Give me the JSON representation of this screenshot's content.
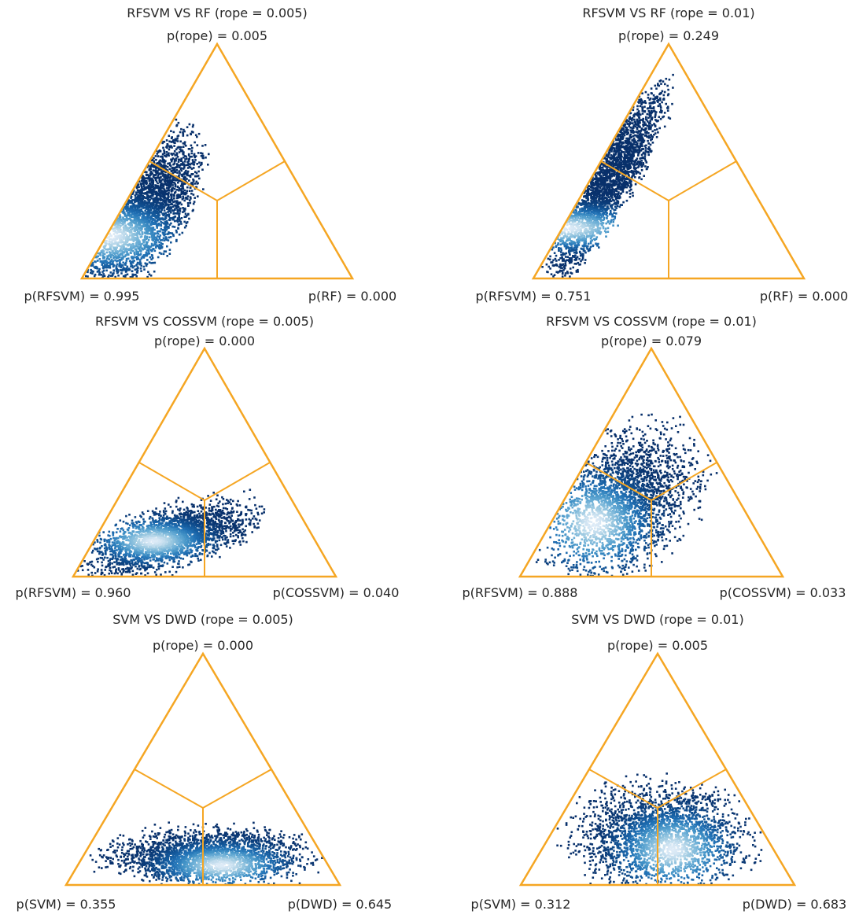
{
  "chart_data": [
    {
      "type": "ternary-density",
      "title": "RFSVM VS RF (rope = 0.005)",
      "labels": {
        "top": "p(rope) = 0.005",
        "left": "p(RFSVM) = 0.995",
        "right": "p(RF) = 0.000"
      },
      "probabilities": {
        "rope": 0.005,
        "left": 0.995,
        "right": 0.0
      },
      "colors": {
        "triangle": "#f5a623",
        "density_low": "#08306b",
        "density_high": "#f7fbff"
      }
    },
    {
      "type": "ternary-density",
      "title": "RFSVM VS RF (rope = 0.01)",
      "labels": {
        "top": "p(rope) = 0.249",
        "left": "p(RFSVM) = 0.751",
        "right": "p(RF) = 0.000"
      },
      "probabilities": {
        "rope": 0.249,
        "left": 0.751,
        "right": 0.0
      },
      "colors": {
        "triangle": "#f5a623",
        "density_low": "#08306b",
        "density_high": "#f7fbff"
      }
    },
    {
      "type": "ternary-density",
      "title": "RFSVM VS COSSVM (rope = 0.005)",
      "labels": {
        "top": "p(rope) = 0.000",
        "left": "p(RFSVM) = 0.960",
        "right": "p(COSSVM) = 0.040"
      },
      "probabilities": {
        "rope": 0.0,
        "left": 0.96,
        "right": 0.04
      },
      "colors": {
        "triangle": "#f5a623",
        "density_low": "#08306b",
        "density_high": "#f7fbff"
      }
    },
    {
      "type": "ternary-density",
      "title": "RFSVM VS COSSVM (rope = 0.01)",
      "labels": {
        "top": "p(rope) = 0.079",
        "left": "p(RFSVM) = 0.888",
        "right": "p(COSSVM) = 0.033"
      },
      "probabilities": {
        "rope": 0.079,
        "left": 0.888,
        "right": 0.033
      },
      "colors": {
        "triangle": "#f5a623",
        "density_low": "#08306b",
        "density_high": "#f7fbff"
      }
    },
    {
      "type": "ternary-density",
      "title": "SVM VS DWD (rope = 0.005)",
      "labels": {
        "top": "p(rope) = 0.000",
        "left": "p(SVM) = 0.355",
        "right": "p(DWD) = 0.645"
      },
      "probabilities": {
        "rope": 0.0,
        "left": 0.355,
        "right": 0.645
      },
      "colors": {
        "triangle": "#f5a623",
        "density_low": "#08306b",
        "density_high": "#f7fbff"
      }
    },
    {
      "type": "ternary-density",
      "title": "SVM VS DWD (rope = 0.01)",
      "labels": {
        "top": "p(rope) = 0.005",
        "left": "p(SVM) = 0.312",
        "right": "p(DWD) = 0.683"
      },
      "probabilities": {
        "rope": 0.005,
        "left": 0.312,
        "right": 0.683
      },
      "colors": {
        "triangle": "#f5a623",
        "density_low": "#08306b",
        "density_high": "#f7fbff"
      }
    }
  ]
}
